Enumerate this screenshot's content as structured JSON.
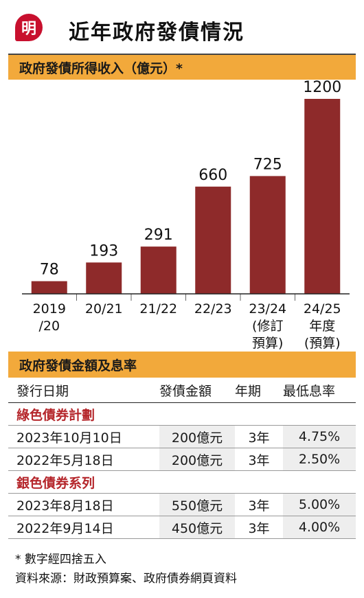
{
  "logo": {
    "text": "明",
    "color": "#c8102e"
  },
  "title": "近年政府發債情況",
  "chart_data": {
    "type": "bar",
    "title": "政府發債所得收入（億元）*",
    "categories": [
      [
        "2019",
        "/20"
      ],
      [
        "20/21"
      ],
      [
        "21/22"
      ],
      [
        "22/23"
      ],
      [
        "23/24",
        "(修訂",
        "預算)"
      ],
      [
        "24/25",
        "年度",
        "(預算)"
      ]
    ],
    "values": [
      78,
      193,
      291,
      660,
      725,
      1200
    ],
    "ylim": [
      0,
      1200
    ],
    "bar_color": "#8e2a2a",
    "grid": false
  },
  "table": {
    "title": "政府發債金額及息率",
    "headers": [
      "發行日期",
      "發債金額",
      "年期",
      "最低息率"
    ],
    "groups": [
      {
        "name": "綠色債券計劃",
        "rows": [
          [
            "2023年10月10日",
            "200億元",
            "3年",
            "4.75%"
          ],
          [
            "2022年5月18日",
            "200億元",
            "3年",
            "2.50%"
          ]
        ]
      },
      {
        "name": "銀色債券系列",
        "rows": [
          [
            "2023年8月18日",
            "550億元",
            "3年",
            "5.00%"
          ],
          [
            "2022年9月14日",
            "450億元",
            "3年",
            "4.00%"
          ]
        ]
      }
    ],
    "group_color": "#b5262b",
    "band_color": "#f2a93b"
  },
  "footnotes": {
    "rounding": "* 數字經四捨五入",
    "source": "資料來源：財政預算案、政府債券網頁資料"
  }
}
